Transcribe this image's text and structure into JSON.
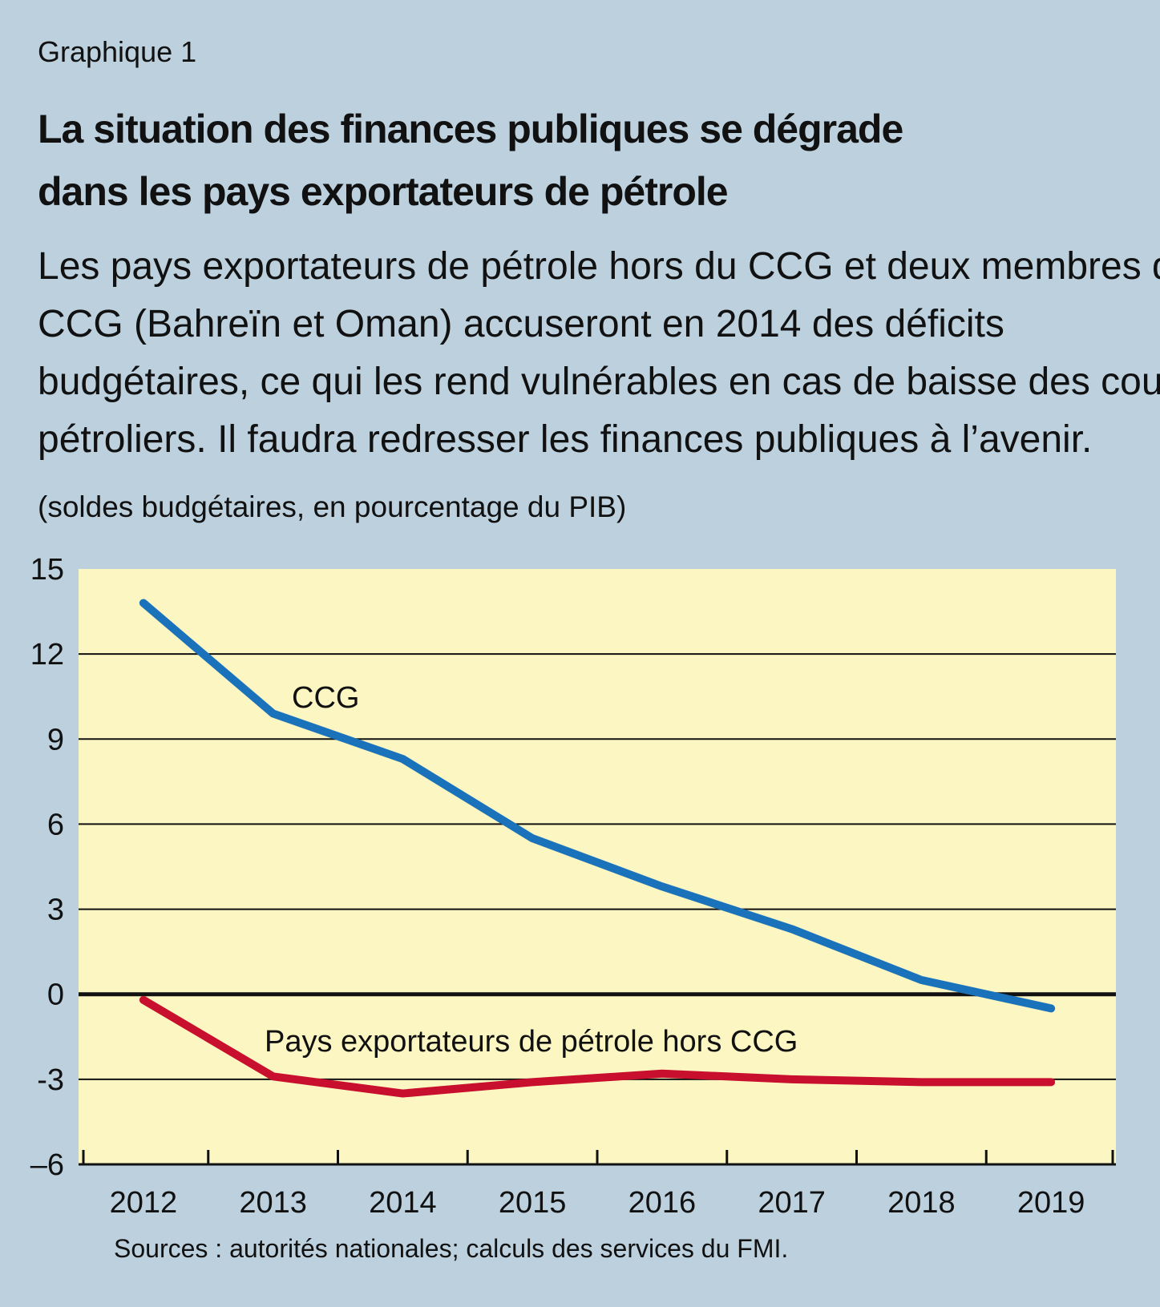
{
  "figure_label": "Graphique 1",
  "title_lines": [
    "La situation des finances publiques se dégrade",
    "dans les pays exportateurs de pétrole"
  ],
  "subtitle_lines": [
    "Les pays exportateurs de pétrole hors du CCG et deux membres du",
    "CCG (Bahreïn et Oman) accuseront en 2014 des déficits",
    "budgétaires, ce qui les rend vulnérables en cas de baisse des cours",
    "pétroliers. Il faudra redresser les finances publiques à l’avenir."
  ],
  "units_label": "(soldes budgétaires, en pourcentage du PIB)",
  "source": "Sources : autorités nationales; calculs des services du FMI.",
  "colors": {
    "background": "#bcd0de",
    "plot_background": "#fbf6c2",
    "ccg": "#1a72bb",
    "non_ccg": "#c8102e"
  },
  "chart_data": {
    "type": "line",
    "categories": [
      "2012",
      "2013",
      "2014",
      "2015",
      "2016",
      "2017",
      "2018",
      "2019"
    ],
    "ylim": [
      -6,
      15
    ],
    "yticks": [
      "15",
      "12",
      "9",
      "6",
      "3",
      "0",
      "-3",
      "–6"
    ],
    "grid": true,
    "series": [
      {
        "name": "CCG",
        "color": "#1a72bb",
        "values": [
          13.8,
          9.9,
          8.3,
          5.5,
          3.8,
          2.3,
          0.5,
          -0.5
        ]
      },
      {
        "name": "Pays exportateurs de pétrole hors CCG",
        "color": "#c8102e",
        "values": [
          -0.2,
          -2.9,
          -3.5,
          -3.1,
          -2.8,
          -3.0,
          -3.1,
          -3.1
        ]
      }
    ]
  }
}
